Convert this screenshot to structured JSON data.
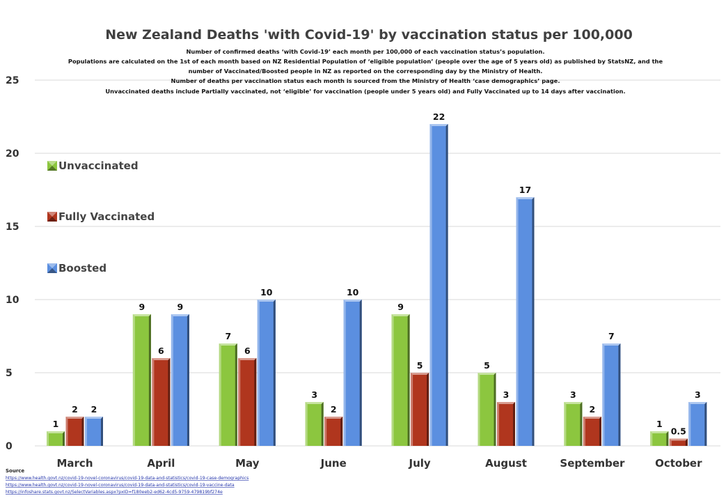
{
  "chart_data": {
    "type": "bar",
    "title": "New Zealand Deaths 'with Covid-19' by vaccination status per 100,000",
    "subtitle_lines": [
      "Number of confirmed deaths ‘with Covid-19’ each month per 100,000 of each vaccination status’s population.",
      "Populations are calculated on the 1st of each month based on NZ Residential Population of ‘eligible population’ (people over the age of 5 years old) as published by StatsNZ, and the",
      "number of Vaccinated/Boosted people in NZ as reported on the corresponding day by the Ministry of Health.",
      "Number of deaths per vaccination status each month is sourced from the Ministry of Health ‘case demographics’ page.",
      "Unvaccinated deaths include Partially vaccinated, not ‘eligible’ for vaccination (people under 5 years old) and Fully Vaccinated up to 14 days after vaccination."
    ],
    "categories": [
      "March",
      "April",
      "May",
      "June",
      "July",
      "August",
      "September",
      "October"
    ],
    "series": [
      {
        "name": "Unvaccinated",
        "color": "#8cc63f",
        "values": [
          1,
          9,
          7,
          3,
          9,
          5,
          3,
          1
        ],
        "labels": [
          "1",
          "9",
          "7",
          "3",
          "9",
          "5",
          "3",
          "1"
        ]
      },
      {
        "name": "Fully Vaccinated",
        "color": "#b0361e",
        "values": [
          2,
          6,
          6,
          2,
          5,
          3,
          2,
          0.5
        ],
        "labels": [
          "2",
          "6",
          "6",
          "2",
          "5",
          "3",
          "2",
          "0.5"
        ]
      },
      {
        "name": "Boosted",
        "color": "#5b8fe0",
        "values": [
          2,
          9,
          10,
          10,
          22,
          17,
          7,
          3
        ],
        "labels": [
          "2",
          "9",
          "10",
          "10",
          "22",
          "17",
          "7",
          "3"
        ]
      }
    ],
    "ylim": [
      0,
      25
    ],
    "yticks": [
      0,
      5,
      10,
      15,
      20,
      25
    ],
    "grid": true,
    "legend_position": "left"
  },
  "source": {
    "heading": "Source",
    "links": [
      "https://www.health.govt.nz/covid-19-novel-coronavirus/covid-19-data-and-statistics/covid-19-case-demographics",
      "https://www.health.govt.nz/covid-19-novel-coronavirus/covid-19-data-and-statistics/covid-19-vaccine-data",
      "https://infoshare.stats.govt.nz/SelectVariables.aspx?pxID=f180eeb2-ed62-4cd5-9759-479819bf274e"
    ]
  }
}
